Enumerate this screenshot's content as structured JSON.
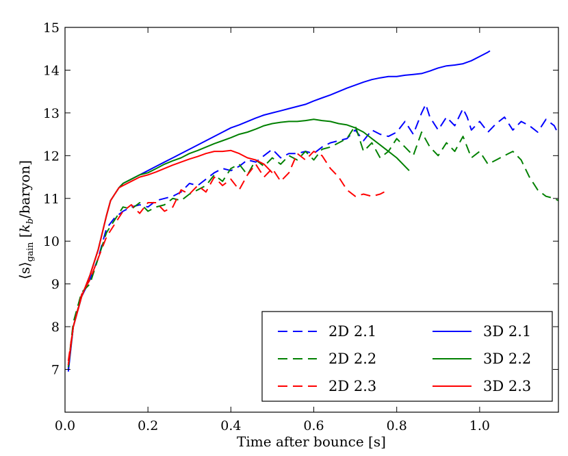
{
  "chart_data": {
    "type": "line",
    "title": "",
    "xlabel": "Time after bounce [s]",
    "ylabel": "⟨s⟩gain [kb/baryon]",
    "ylabel_main": "⟨s⟩",
    "ylabel_sub": "gain",
    "ylabel_unit_k": "k",
    "ylabel_unit_sub": "b",
    "ylabel_unit_rest": "/baryon]",
    "xlim": [
      0.0,
      1.19
    ],
    "ylim": [
      6.0,
      15.0
    ],
    "xticks": [
      0.0,
      0.2,
      0.4,
      0.6,
      0.8,
      1.0
    ],
    "xtick_labels": [
      "0.0",
      "0.2",
      "0.4",
      "0.6",
      "0.8",
      "1.0"
    ],
    "yticks": [
      7,
      8,
      9,
      10,
      11,
      12,
      13,
      14,
      15
    ],
    "ytick_labels": [
      "7",
      "8",
      "9",
      "10",
      "11",
      "12",
      "13",
      "14",
      "15"
    ],
    "grid": false,
    "legend_position": "bottom-right",
    "series": [
      {
        "name": "2D 2.1",
        "color": "#0000ff",
        "dashed": true,
        "x": [
          0.008,
          0.02,
          0.04,
          0.06,
          0.08,
          0.1,
          0.12,
          0.14,
          0.16,
          0.18,
          0.2,
          0.22,
          0.24,
          0.26,
          0.28,
          0.3,
          0.32,
          0.34,
          0.36,
          0.38,
          0.4,
          0.42,
          0.44,
          0.46,
          0.48,
          0.5,
          0.52,
          0.54,
          0.56,
          0.58,
          0.6,
          0.62,
          0.64,
          0.66,
          0.68,
          0.7,
          0.72,
          0.74,
          0.76,
          0.78,
          0.8,
          0.82,
          0.84,
          0.86,
          0.87,
          0.88,
          0.9,
          0.92,
          0.94,
          0.96,
          0.97,
          0.98,
          1.0,
          1.02,
          1.04,
          1.06,
          1.08,
          1.1,
          1.12,
          1.14,
          1.16,
          1.18,
          1.19
        ],
        "values": [
          7.0,
          8.0,
          8.7,
          9.1,
          9.6,
          10.3,
          10.55,
          10.7,
          10.8,
          10.85,
          10.8,
          10.95,
          11.0,
          11.05,
          11.15,
          11.35,
          11.3,
          11.45,
          11.6,
          11.7,
          11.65,
          11.75,
          11.9,
          11.85,
          12.0,
          12.15,
          11.95,
          12.05,
          12.05,
          12.1,
          12.05,
          12.2,
          12.3,
          12.35,
          12.4,
          12.6,
          12.35,
          12.6,
          12.5,
          12.45,
          12.55,
          12.8,
          12.5,
          13.0,
          13.2,
          12.9,
          12.6,
          12.9,
          12.7,
          13.1,
          12.9,
          12.6,
          12.8,
          12.55,
          12.75,
          12.9,
          12.6,
          12.8,
          12.7,
          12.55,
          12.85,
          12.7,
          12.5
        ]
      },
      {
        "name": "2D 2.2",
        "color": "#008000",
        "dashed": true,
        "x": [
          0.008,
          0.02,
          0.04,
          0.06,
          0.08,
          0.1,
          0.12,
          0.14,
          0.16,
          0.18,
          0.2,
          0.22,
          0.24,
          0.26,
          0.28,
          0.3,
          0.32,
          0.34,
          0.36,
          0.38,
          0.4,
          0.42,
          0.44,
          0.46,
          0.48,
          0.5,
          0.52,
          0.54,
          0.56,
          0.58,
          0.6,
          0.62,
          0.64,
          0.66,
          0.68,
          0.7,
          0.72,
          0.74,
          0.76,
          0.78,
          0.8,
          0.82,
          0.84,
          0.86,
          0.88,
          0.9,
          0.92,
          0.94,
          0.96,
          0.98,
          1.0,
          1.02,
          1.04,
          1.06,
          1.08,
          1.1,
          1.12,
          1.14,
          1.16,
          1.18,
          1.19
        ],
        "values": [
          7.1,
          8.1,
          8.8,
          9.0,
          9.6,
          10.2,
          10.5,
          10.8,
          10.75,
          10.9,
          10.7,
          10.8,
          10.85,
          11.0,
          10.95,
          11.1,
          11.2,
          11.3,
          11.55,
          11.4,
          11.7,
          11.8,
          11.55,
          11.9,
          11.75,
          11.95,
          11.8,
          12.0,
          11.9,
          12.1,
          11.9,
          12.15,
          12.2,
          12.3,
          12.4,
          12.7,
          12.1,
          12.3,
          11.95,
          12.1,
          12.4,
          12.2,
          12.0,
          12.55,
          12.2,
          12.0,
          12.3,
          12.1,
          12.45,
          11.95,
          12.1,
          11.8,
          11.9,
          12.0,
          12.1,
          11.9,
          11.5,
          11.2,
          11.05,
          11.0,
          10.95
        ]
      },
      {
        "name": "2D 2.3",
        "color": "#ff0000",
        "dashed": true,
        "x": [
          0.008,
          0.02,
          0.04,
          0.06,
          0.08,
          0.1,
          0.12,
          0.14,
          0.16,
          0.18,
          0.2,
          0.22,
          0.24,
          0.26,
          0.28,
          0.3,
          0.32,
          0.34,
          0.36,
          0.38,
          0.4,
          0.42,
          0.44,
          0.46,
          0.48,
          0.5,
          0.52,
          0.54,
          0.56,
          0.58,
          0.6,
          0.62,
          0.64,
          0.66,
          0.68,
          0.7,
          0.72,
          0.74,
          0.76,
          0.77
        ],
        "values": [
          7.2,
          8.0,
          8.75,
          9.1,
          9.6,
          10.1,
          10.4,
          10.7,
          10.85,
          10.65,
          10.9,
          10.9,
          10.7,
          10.8,
          11.2,
          11.1,
          11.3,
          11.15,
          11.5,
          11.3,
          11.45,
          11.2,
          11.55,
          11.8,
          11.5,
          11.7,
          11.4,
          11.6,
          12.05,
          11.9,
          12.1,
          12.0,
          11.7,
          11.5,
          11.2,
          11.05,
          11.1,
          11.05,
          11.1,
          11.15
        ]
      },
      {
        "name": "3D 2.1",
        "color": "#0000ff",
        "dashed": false,
        "x": [
          0.008,
          0.02,
          0.04,
          0.06,
          0.08,
          0.1,
          0.11,
          0.12,
          0.13,
          0.14,
          0.16,
          0.18,
          0.2,
          0.22,
          0.24,
          0.26,
          0.28,
          0.3,
          0.32,
          0.34,
          0.36,
          0.38,
          0.4,
          0.42,
          0.44,
          0.46,
          0.48,
          0.5,
          0.52,
          0.54,
          0.56,
          0.58,
          0.6,
          0.62,
          0.64,
          0.66,
          0.68,
          0.7,
          0.72,
          0.74,
          0.76,
          0.78,
          0.8,
          0.82,
          0.84,
          0.86,
          0.88,
          0.9,
          0.92,
          0.94,
          0.96,
          0.98,
          1.0,
          1.02,
          1.025
        ],
        "values": [
          6.95,
          8.0,
          8.7,
          9.2,
          9.8,
          10.6,
          10.95,
          11.1,
          11.25,
          11.35,
          11.45,
          11.55,
          11.65,
          11.75,
          11.85,
          11.95,
          12.05,
          12.15,
          12.25,
          12.35,
          12.45,
          12.55,
          12.65,
          12.72,
          12.8,
          12.88,
          12.95,
          13.0,
          13.05,
          13.1,
          13.15,
          13.2,
          13.28,
          13.35,
          13.42,
          13.5,
          13.58,
          13.65,
          13.72,
          13.78,
          13.82,
          13.85,
          13.85,
          13.88,
          13.9,
          13.92,
          13.98,
          14.05,
          14.1,
          14.12,
          14.15,
          14.22,
          14.32,
          14.42,
          14.45
        ]
      },
      {
        "name": "3D 2.2",
        "color": "#008000",
        "dashed": false,
        "x": [
          0.008,
          0.02,
          0.04,
          0.06,
          0.08,
          0.1,
          0.11,
          0.12,
          0.13,
          0.14,
          0.16,
          0.18,
          0.2,
          0.22,
          0.24,
          0.26,
          0.28,
          0.3,
          0.32,
          0.34,
          0.36,
          0.38,
          0.4,
          0.42,
          0.44,
          0.46,
          0.48,
          0.5,
          0.52,
          0.54,
          0.56,
          0.58,
          0.6,
          0.62,
          0.64,
          0.66,
          0.68,
          0.7,
          0.72,
          0.74,
          0.76,
          0.78,
          0.8,
          0.82,
          0.83
        ],
        "values": [
          7.05,
          8.0,
          8.7,
          9.2,
          9.8,
          10.6,
          10.95,
          11.1,
          11.25,
          11.35,
          11.45,
          11.55,
          11.6,
          11.7,
          11.8,
          11.88,
          11.95,
          12.05,
          12.12,
          12.2,
          12.28,
          12.35,
          12.42,
          12.5,
          12.55,
          12.62,
          12.7,
          12.75,
          12.78,
          12.8,
          12.8,
          12.82,
          12.85,
          12.82,
          12.8,
          12.75,
          12.72,
          12.65,
          12.55,
          12.4,
          12.25,
          12.1,
          11.95,
          11.75,
          11.65
        ]
      },
      {
        "name": "3D 2.3",
        "color": "#ff0000",
        "dashed": false,
        "x": [
          0.008,
          0.02,
          0.04,
          0.06,
          0.08,
          0.1,
          0.11,
          0.12,
          0.13,
          0.14,
          0.16,
          0.18,
          0.2,
          0.22,
          0.24,
          0.26,
          0.28,
          0.3,
          0.32,
          0.34,
          0.36,
          0.38,
          0.4,
          0.42,
          0.44,
          0.46,
          0.48,
          0.5
        ],
        "values": [
          7.1,
          8.0,
          8.7,
          9.2,
          9.8,
          10.6,
          10.95,
          11.1,
          11.25,
          11.3,
          11.4,
          11.5,
          11.55,
          11.62,
          11.7,
          11.78,
          11.85,
          11.92,
          11.98,
          12.05,
          12.1,
          12.1,
          12.12,
          12.05,
          11.95,
          11.9,
          11.8,
          11.6
        ]
      }
    ]
  }
}
